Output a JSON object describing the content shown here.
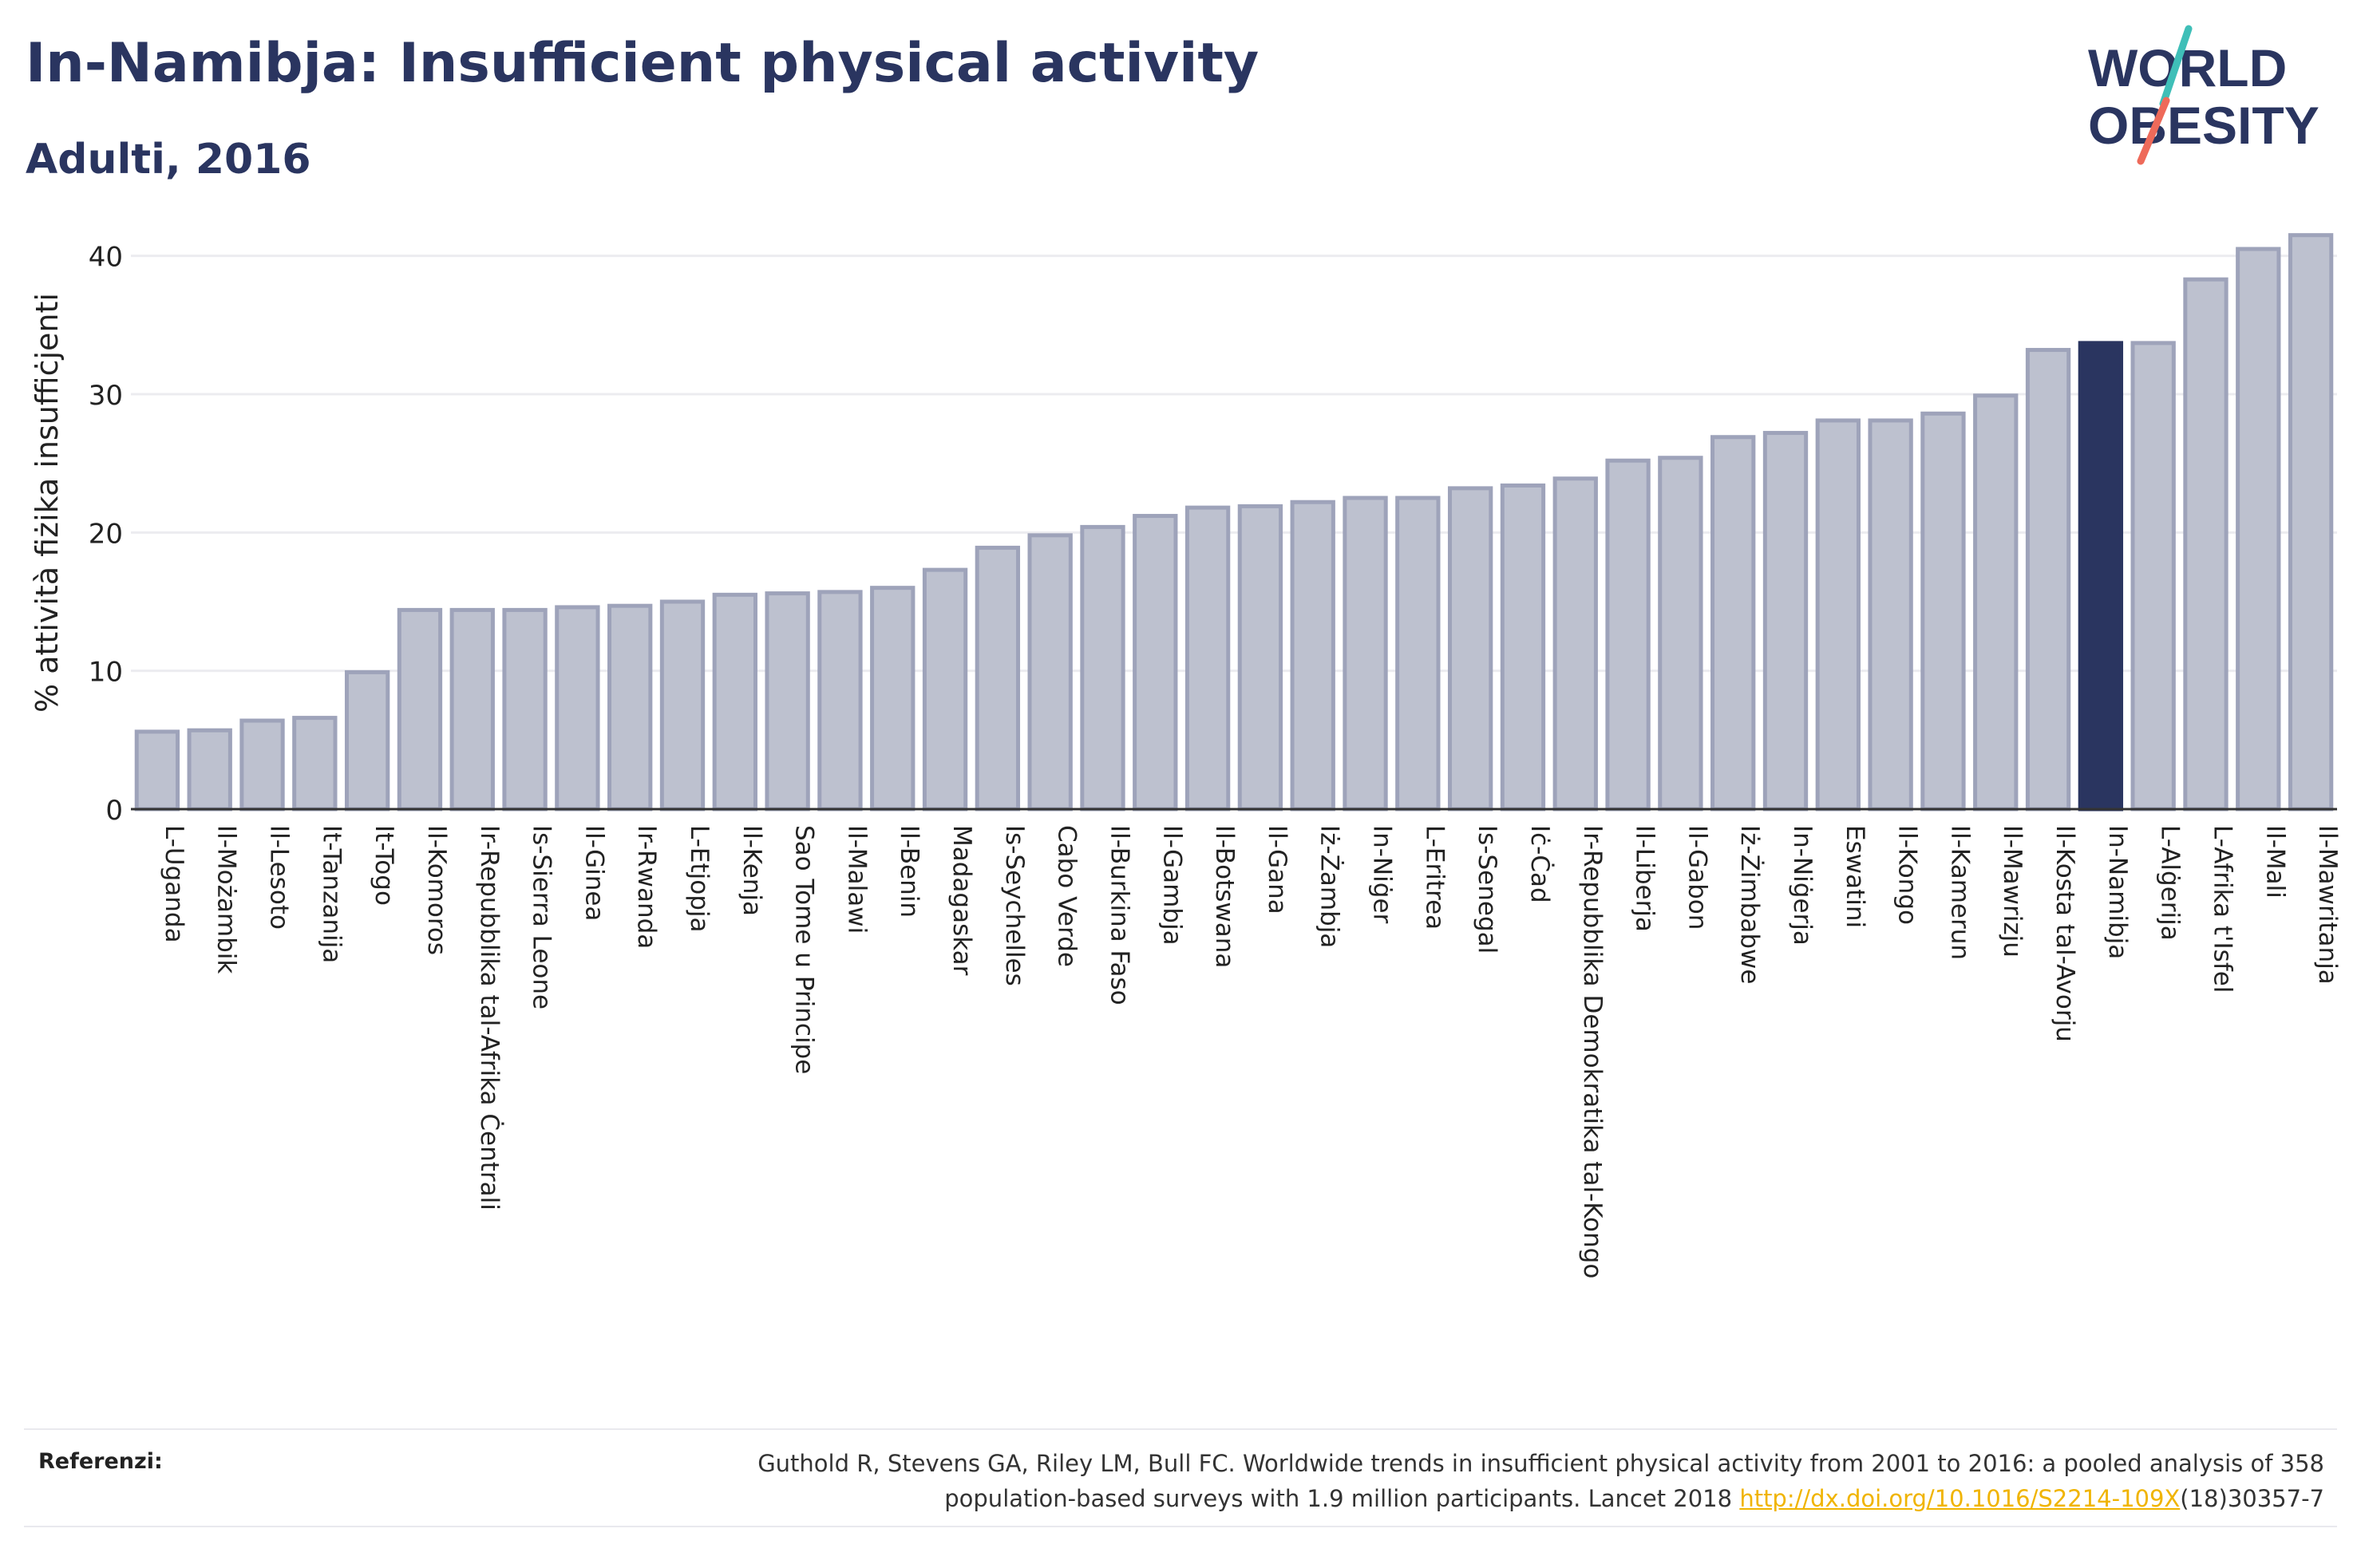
{
  "header": {
    "title": "In-Namibja: Insufficient physical activity",
    "subtitle": "Adulti, 2016"
  },
  "logo": {
    "line1": "WORLD",
    "line2": "OBESITY",
    "text_color": "#2a3560",
    "accent_teal": "#3fbfb8",
    "accent_coral": "#ee6a5a"
  },
  "chart_data": {
    "type": "bar",
    "title": "In-Namibja: Insufficient physical activity",
    "subtitle": "Adulti, 2016",
    "ylabel": "% attività fiżika insuffiċjenti",
    "xlabel": "",
    "ylim": [
      0,
      42
    ],
    "yticks": [
      0,
      10,
      20,
      30,
      40
    ],
    "grid": true,
    "highlight": "In-Namibja",
    "colors": {
      "bar": "#bdc1cf",
      "bar_stroke": "#9ea3ba",
      "highlight": "#2a3560",
      "grid": "#ececf0",
      "axis": "#333333"
    },
    "categories": [
      "L-Uganda",
      "Il-Możambik",
      "Il-Lesoto",
      "It-Tanzanija",
      "It-Togo",
      "Il-Komoros",
      "Ir-Repubblika tal-Afrika Ċentrali",
      "Is-Sierra Leone",
      "Il-Ginea",
      "Ir-Rwanda",
      "L-Etjopja",
      "Il-Kenja",
      "Sao Tome u Principe",
      "Il-Malawi",
      "Il-Benin",
      "Madagaskar",
      "Is-Seychelles",
      "Cabo Verde",
      "Il-Burkina Faso",
      "Il-Gambja",
      "Il-Botswana",
      "Il-Gana",
      "Iż-Żambja",
      "In-Niġer",
      "L-Eritrea",
      "Is-Senegal",
      "Iċ-Ċad",
      "Ir-Repubblika Demokratika tal-Kongo",
      "Il-Liberja",
      "Il-Gabon",
      "Iż-Żimbabwe",
      "In-Niġerja",
      "Eswatini",
      "Il-Kongo",
      "Il-Kamerun",
      "Il-Mawrizju",
      "Il-Kosta tal-Avorju",
      "In-Namibja",
      "L-Alġerija",
      "L-Afrika t'Isfel",
      "Il-Mali",
      "Il-Mawritanja"
    ],
    "values": [
      5.6,
      5.7,
      6.4,
      6.6,
      9.9,
      14.4,
      14.4,
      14.4,
      14.6,
      14.7,
      15.0,
      15.5,
      15.6,
      15.7,
      16.0,
      17.3,
      18.9,
      19.8,
      20.4,
      21.2,
      21.8,
      21.9,
      22.2,
      22.5,
      22.5,
      23.2,
      23.4,
      23.9,
      25.2,
      25.4,
      26.9,
      27.2,
      28.1,
      28.1,
      28.6,
      29.9,
      33.2,
      33.7,
      33.7,
      38.3,
      40.5,
      41.5
    ]
  },
  "footer": {
    "label": "Referenzi:",
    "text_line1": "Guthold R, Stevens GA, Riley LM, Bull FC. Worldwide trends in insufficient physical activity from 2001 to 2016: a pooled analysis of 358",
    "text_line2_prefix": "population-based surveys with 1.9 million participants. Lancet 2018 ",
    "link_text": "http://dx.doi.org/10.1016/S2214-109X",
    "text_line2_suffix": "(18)30357-7"
  }
}
